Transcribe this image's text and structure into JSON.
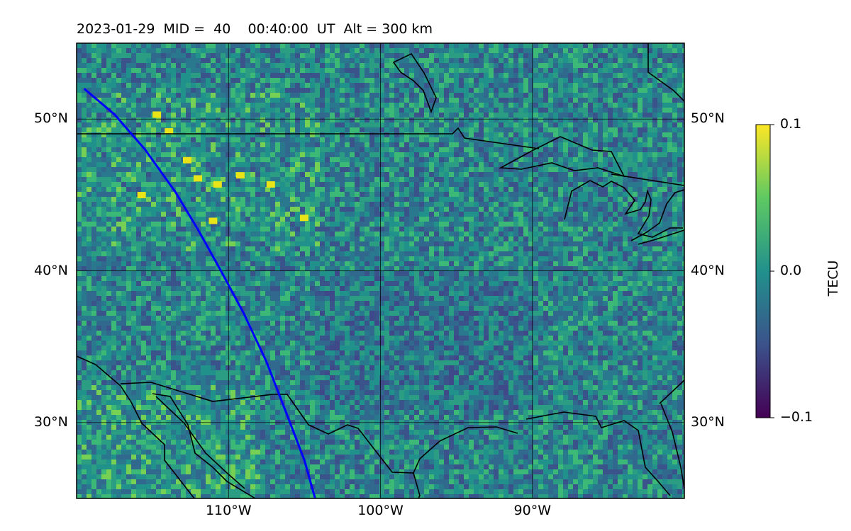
{
  "title": "2023-01-29  MID =  40    00:40:00  UT  Alt = 300 km",
  "map": {
    "lon_range": [
      -120,
      -80
    ],
    "lat_range": [
      25,
      55
    ],
    "lat_ticks": [
      {
        "value": 30,
        "label": "30°N"
      },
      {
        "value": 40,
        "label": "40°N"
      },
      {
        "value": 50,
        "label": "50°N"
      }
    ],
    "lon_ticks": [
      {
        "value": -110,
        "label": "110°W"
      },
      {
        "value": -100,
        "label": "100°W"
      },
      {
        "value": -90,
        "label": "90°W"
      }
    ],
    "track_color": "#0000ff",
    "track_lonlat": [
      [
        -119.5,
        52.0
      ],
      [
        -117.5,
        50.3
      ],
      [
        -115.5,
        48.0
      ],
      [
        -113.5,
        45.2
      ],
      [
        -112.0,
        42.7
      ],
      [
        -110.5,
        40.0
      ],
      [
        -109.0,
        37.2
      ],
      [
        -107.5,
        34.0
      ],
      [
        -106.3,
        30.9
      ],
      [
        -105.0,
        27.5
      ],
      [
        -104.3,
        25.0
      ]
    ],
    "colormap": "viridis"
  },
  "colorbar": {
    "label": "TECU",
    "ticks": [
      {
        "value": 0.1,
        "label": "0.1"
      },
      {
        "value": 0.0,
        "label": "0.0"
      },
      {
        "value": -0.1,
        "label": "−0.1"
      }
    ],
    "range": [
      -0.1,
      0.1
    ]
  }
}
